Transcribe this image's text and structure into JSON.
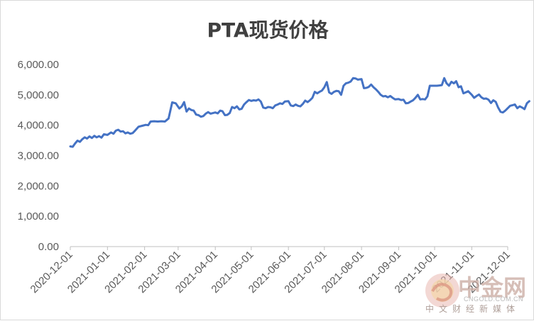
{
  "chart_data": {
    "type": "line",
    "title": "PTA现货价格",
    "xlabel": "",
    "ylabel": "",
    "ylim": [
      0,
      6000
    ],
    "y_ticks": [
      "0.00",
      "1,000.00",
      "2,000.00",
      "3,000.00",
      "4,000.00",
      "5,000.00",
      "6,000.00"
    ],
    "x_ticks": [
      "2020-12-01",
      "2021-01-01",
      "2021-02-01",
      "2021-03-01",
      "2021-04-01",
      "2021-05-01",
      "2021-06-01",
      "2021-07-01",
      "2021-08-01",
      "2021-09-01",
      "2021-10-01",
      "2021-11-01",
      "2021-12-01"
    ],
    "grid": "none",
    "legend": "none",
    "series_color": "#4472c4",
    "series": [
      {
        "points": [
          [
            "2020-12-01",
            3300
          ],
          [
            "2020-12-03",
            3290
          ],
          [
            "2020-12-05",
            3400
          ],
          [
            "2020-12-07",
            3490
          ],
          [
            "2020-12-09",
            3450
          ],
          [
            "2020-12-11",
            3540
          ],
          [
            "2020-12-13",
            3600
          ],
          [
            "2020-12-15",
            3560
          ],
          [
            "2020-12-17",
            3630
          ],
          [
            "2020-12-19",
            3580
          ],
          [
            "2020-12-21",
            3650
          ],
          [
            "2020-12-23",
            3600
          ],
          [
            "2020-12-25",
            3640
          ],
          [
            "2020-12-27",
            3590
          ],
          [
            "2020-12-29",
            3700
          ],
          [
            "2021-01-01",
            3680
          ],
          [
            "2021-01-04",
            3760
          ],
          [
            "2021-01-06",
            3720
          ],
          [
            "2021-01-08",
            3820
          ],
          [
            "2021-01-10",
            3850
          ],
          [
            "2021-01-12",
            3790
          ],
          [
            "2021-01-14",
            3800
          ],
          [
            "2021-01-16",
            3730
          ],
          [
            "2021-01-18",
            3760
          ],
          [
            "2021-01-20",
            3720
          ],
          [
            "2021-01-22",
            3740
          ],
          [
            "2021-01-24",
            3820
          ],
          [
            "2021-01-27",
            3950
          ],
          [
            "2021-01-30",
            3980
          ],
          [
            "2021-02-02",
            4010
          ],
          [
            "2021-02-04",
            4000
          ],
          [
            "2021-02-06",
            4120
          ],
          [
            "2021-02-09",
            4130
          ],
          [
            "2021-02-12",
            4120
          ],
          [
            "2021-02-15",
            4130
          ],
          [
            "2021-02-18",
            4120
          ],
          [
            "2021-02-21",
            4220
          ],
          [
            "2021-02-24",
            4750
          ],
          [
            "2021-02-27",
            4720
          ],
          [
            "2021-03-02",
            4550
          ],
          [
            "2021-03-04",
            4620
          ],
          [
            "2021-03-06",
            4760
          ],
          [
            "2021-03-08",
            4450
          ],
          [
            "2021-03-10",
            4550
          ],
          [
            "2021-03-12",
            4500
          ],
          [
            "2021-03-14",
            4480
          ],
          [
            "2021-03-16",
            4350
          ],
          [
            "2021-03-18",
            4330
          ],
          [
            "2021-03-20",
            4280
          ],
          [
            "2021-03-22",
            4300
          ],
          [
            "2021-03-24",
            4380
          ],
          [
            "2021-03-26",
            4430
          ],
          [
            "2021-03-28",
            4380
          ],
          [
            "2021-04-01",
            4420
          ],
          [
            "2021-04-03",
            4390
          ],
          [
            "2021-04-05",
            4480
          ],
          [
            "2021-04-07",
            4460
          ],
          [
            "2021-04-09",
            4330
          ],
          [
            "2021-04-11",
            4340
          ],
          [
            "2021-04-13",
            4400
          ],
          [
            "2021-04-15",
            4600
          ],
          [
            "2021-04-17",
            4560
          ],
          [
            "2021-04-19",
            4620
          ],
          [
            "2021-04-21",
            4520
          ],
          [
            "2021-04-23",
            4540
          ],
          [
            "2021-04-25",
            4680
          ],
          [
            "2021-04-27",
            4760
          ],
          [
            "2021-04-29",
            4830
          ],
          [
            "2021-05-01",
            4800
          ],
          [
            "2021-05-03",
            4820
          ],
          [
            "2021-05-05",
            4810
          ],
          [
            "2021-05-07",
            4850
          ],
          [
            "2021-05-09",
            4780
          ],
          [
            "2021-05-11",
            4580
          ],
          [
            "2021-05-13",
            4560
          ],
          [
            "2021-05-15",
            4600
          ],
          [
            "2021-05-17",
            4590
          ],
          [
            "2021-05-19",
            4560
          ],
          [
            "2021-05-21",
            4650
          ],
          [
            "2021-05-23",
            4680
          ],
          [
            "2021-05-25",
            4720
          ],
          [
            "2021-05-27",
            4700
          ],
          [
            "2021-05-29",
            4780
          ],
          [
            "2021-06-01",
            4790
          ],
          [
            "2021-06-03",
            4650
          ],
          [
            "2021-06-05",
            4630
          ],
          [
            "2021-06-07",
            4680
          ],
          [
            "2021-06-09",
            4640
          ],
          [
            "2021-06-11",
            4620
          ],
          [
            "2021-06-13",
            4700
          ],
          [
            "2021-06-15",
            4810
          ],
          [
            "2021-06-17",
            4760
          ],
          [
            "2021-06-19",
            4820
          ],
          [
            "2021-06-21",
            4900
          ],
          [
            "2021-06-23",
            5100
          ],
          [
            "2021-06-25",
            5050
          ],
          [
            "2021-06-27",
            5100
          ],
          [
            "2021-06-29",
            5140
          ],
          [
            "2021-07-01",
            5250
          ],
          [
            "2021-07-03",
            5420
          ],
          [
            "2021-07-05",
            5080
          ],
          [
            "2021-07-07",
            5030
          ],
          [
            "2021-07-09",
            5100
          ],
          [
            "2021-07-11",
            5130
          ],
          [
            "2021-07-13",
            5120
          ],
          [
            "2021-07-15",
            5000
          ],
          [
            "2021-07-17",
            5300
          ],
          [
            "2021-07-19",
            5380
          ],
          [
            "2021-07-21",
            5400
          ],
          [
            "2021-07-23",
            5440
          ],
          [
            "2021-07-25",
            5550
          ],
          [
            "2021-07-27",
            5540
          ],
          [
            "2021-07-29",
            5500
          ],
          [
            "2021-08-01",
            5520
          ],
          [
            "2021-08-03",
            5220
          ],
          [
            "2021-08-05",
            5230
          ],
          [
            "2021-08-07",
            5260
          ],
          [
            "2021-08-09",
            5340
          ],
          [
            "2021-08-11",
            5250
          ],
          [
            "2021-08-13",
            5180
          ],
          [
            "2021-08-15",
            5100
          ],
          [
            "2021-08-17",
            5000
          ],
          [
            "2021-08-19",
            4950
          ],
          [
            "2021-08-21",
            4960
          ],
          [
            "2021-08-23",
            4920
          ],
          [
            "2021-08-25",
            4960
          ],
          [
            "2021-08-27",
            4900
          ],
          [
            "2021-08-29",
            4850
          ],
          [
            "2021-09-01",
            4860
          ],
          [
            "2021-09-03",
            4830
          ],
          [
            "2021-09-05",
            4840
          ],
          [
            "2021-09-07",
            4720
          ],
          [
            "2021-09-09",
            4730
          ],
          [
            "2021-09-11",
            4780
          ],
          [
            "2021-09-13",
            4820
          ],
          [
            "2021-09-15",
            4900
          ],
          [
            "2021-09-17",
            5000
          ],
          [
            "2021-09-19",
            4850
          ],
          [
            "2021-09-21",
            4860
          ],
          [
            "2021-09-23",
            4850
          ],
          [
            "2021-09-25",
            4950
          ],
          [
            "2021-09-27",
            5300
          ],
          [
            "2021-09-29",
            5300
          ],
          [
            "2021-10-01",
            5300
          ],
          [
            "2021-10-03",
            5300
          ],
          [
            "2021-10-05",
            5310
          ],
          [
            "2021-10-07",
            5320
          ],
          [
            "2021-10-09",
            5550
          ],
          [
            "2021-10-11",
            5380
          ],
          [
            "2021-10-13",
            5300
          ],
          [
            "2021-10-15",
            5430
          ],
          [
            "2021-10-17",
            5380
          ],
          [
            "2021-10-19",
            5450
          ],
          [
            "2021-10-21",
            5250
          ],
          [
            "2021-10-23",
            5280
          ],
          [
            "2021-10-25",
            5050
          ],
          [
            "2021-10-27",
            5080
          ],
          [
            "2021-10-29",
            5120
          ],
          [
            "2021-11-01",
            5000
          ],
          [
            "2021-11-03",
            4900
          ],
          [
            "2021-11-05",
            4960
          ],
          [
            "2021-11-07",
            5010
          ],
          [
            "2021-11-09",
            4920
          ],
          [
            "2021-11-11",
            4870
          ],
          [
            "2021-11-13",
            4880
          ],
          [
            "2021-11-15",
            4840
          ],
          [
            "2021-11-17",
            4730
          ],
          [
            "2021-11-19",
            4820
          ],
          [
            "2021-11-21",
            4770
          ],
          [
            "2021-11-23",
            4580
          ],
          [
            "2021-11-25",
            4440
          ],
          [
            "2021-11-27",
            4420
          ],
          [
            "2021-11-29",
            4480
          ],
          [
            "2021-12-01",
            4560
          ],
          [
            "2021-12-03",
            4640
          ],
          [
            "2021-12-05",
            4660
          ],
          [
            "2021-12-07",
            4680
          ],
          [
            "2021-12-09",
            4560
          ],
          [
            "2021-12-11",
            4620
          ],
          [
            "2021-12-13",
            4580
          ],
          [
            "2021-12-15",
            4530
          ],
          [
            "2021-12-17",
            4720
          ],
          [
            "2021-12-19",
            4790
          ]
        ]
      }
    ]
  },
  "watermark": {
    "brand": "中金网",
    "site": "CNGOLD.COM.CN",
    "tagline": "中文财经新媒体"
  }
}
